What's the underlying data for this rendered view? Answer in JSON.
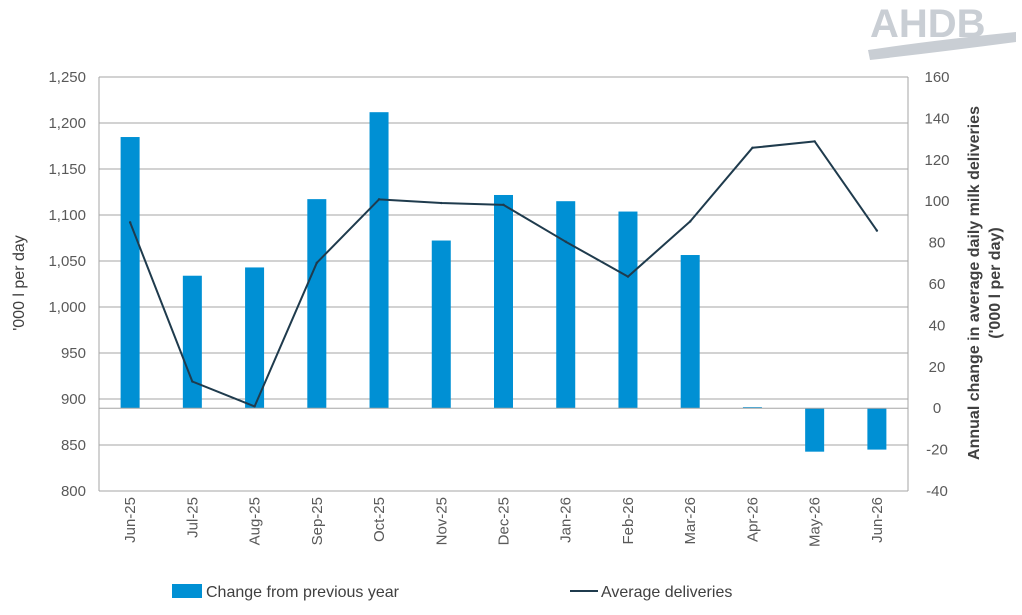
{
  "logo": {
    "text": "AHDB"
  },
  "chart_data": {
    "type": "bar+line",
    "categories": [
      "Jun-25",
      "Jul-25",
      "Aug-25",
      "Sep-25",
      "Oct-25",
      "Nov-25",
      "Dec-25",
      "Jan-26",
      "Feb-26",
      "Mar-26",
      "Apr-26",
      "May-26",
      "Jun-26"
    ],
    "left_axis": {
      "title": "'000 l per day",
      "ylim": [
        800,
        1250
      ],
      "ticks": [
        800,
        850,
        900,
        950,
        1000,
        1050,
        1100,
        1150,
        1200,
        1250
      ],
      "tick_labels": [
        "800",
        "850",
        "900",
        "950",
        "1,000",
        "1,050",
        "1,100",
        "1,150",
        "1,200",
        "1,250"
      ]
    },
    "right_axis": {
      "title_line1": "Annual change in average daily milk deliveries",
      "title_line2": "('000 l per day)",
      "ylim": [
        -40,
        160
      ],
      "ticks": [
        -40,
        -20,
        0,
        20,
        40,
        60,
        80,
        100,
        120,
        140,
        160
      ],
      "tick_labels": [
        "-40",
        "-20",
        "0",
        "20",
        "40",
        "60",
        "80",
        "100",
        "120",
        "140",
        "160"
      ]
    },
    "series": [
      {
        "name": "Change from previous year",
        "type": "bar",
        "axis": "right",
        "color": "#0090d4",
        "values": [
          131,
          64,
          68,
          101,
          143,
          81,
          103,
          100,
          95,
          74,
          0.5,
          -21,
          -20
        ]
      },
      {
        "name": "Average deliveries",
        "type": "line",
        "axis": "left",
        "color": "#1f3b4d",
        "values": [
          1092,
          919,
          892,
          1048,
          1117,
          1113,
          1111,
          1071,
          1033,
          1093,
          1173,
          1180,
          1083
        ]
      }
    ],
    "grid": true,
    "legend_position": "bottom"
  }
}
